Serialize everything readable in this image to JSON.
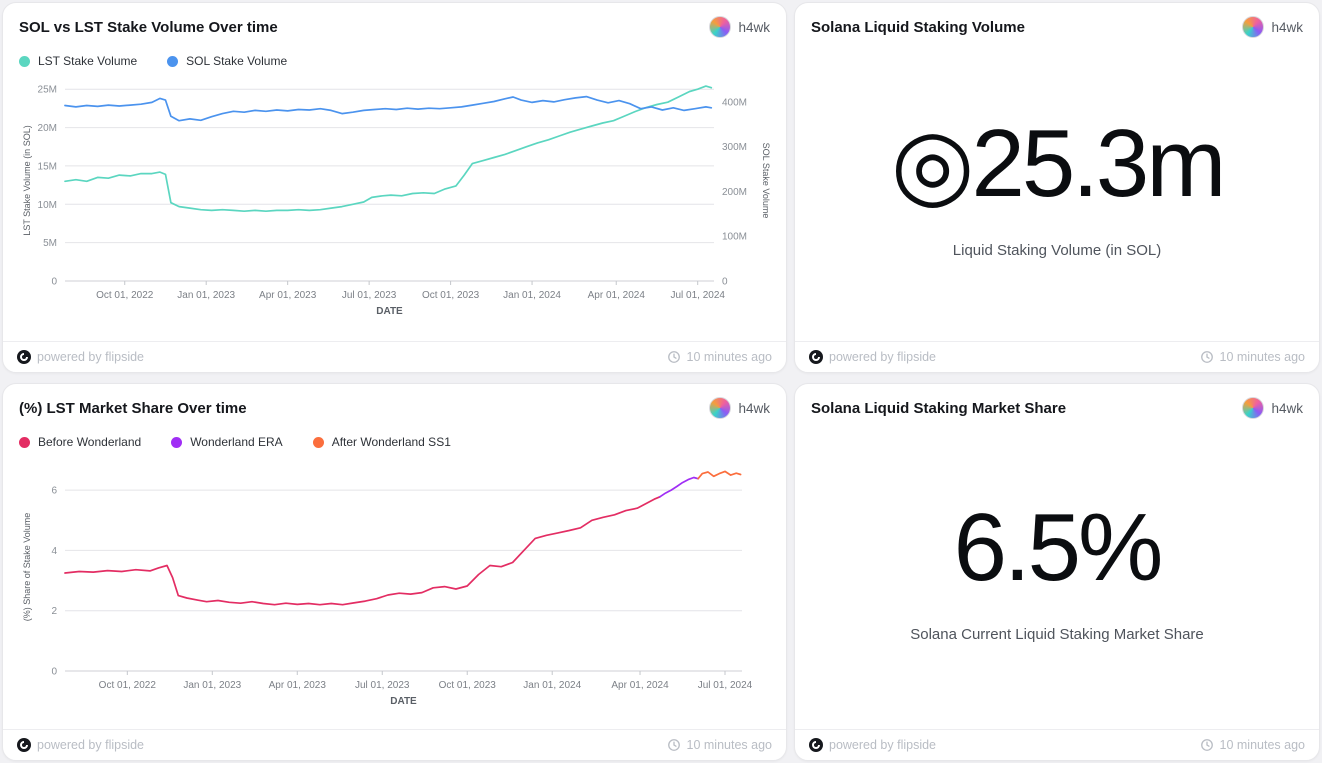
{
  "user": {
    "name": "h4wk"
  },
  "footer": {
    "powered_by": "powered by flipside",
    "updated": "10 minutes ago"
  },
  "stat_cards": [
    {
      "title": "Solana Liquid Staking Volume",
      "value": "◎25.3m",
      "caption": "Liquid Staking Volume (in SOL)"
    },
    {
      "title": "Solana Liquid Staking Market Share",
      "value": "6.5%",
      "caption": "Solana Current Liquid Staking Market Share"
    }
  ],
  "chart_data": [
    {
      "type": "line",
      "title": "SOL vs LST Stake Volume Over time",
      "xlabel": "DATE",
      "x_unit": "months since late Jul 2022 (approx dates)",
      "x_domain": [
        0,
        23.9
      ],
      "grid": true,
      "legend_position": "top",
      "x_ticks": [
        {
          "v": 2.2,
          "label": "Oct 01, 2022"
        },
        {
          "v": 5.2,
          "label": "Jan 01, 2023"
        },
        {
          "v": 8.2,
          "label": "Apr 01, 2023"
        },
        {
          "v": 11.2,
          "label": "Jul 01, 2023"
        },
        {
          "v": 14.2,
          "label": "Oct 01, 2023"
        },
        {
          "v": 17.2,
          "label": "Jan 01, 2024"
        },
        {
          "v": 20.3,
          "label": "Apr 01, 2024"
        },
        {
          "v": 23.3,
          "label": "Jul 01, 2024"
        }
      ],
      "axes": {
        "left": {
          "label": "LST Stake Volume (in SOL)",
          "domain": [
            0,
            26.2
          ],
          "ticks": [
            {
              "v": 0,
              "label": "0"
            },
            {
              "v": 5,
              "label": "5M"
            },
            {
              "v": 10,
              "label": "10M"
            },
            {
              "v": 15,
              "label": "15M"
            },
            {
              "v": 20,
              "label": "20M"
            },
            {
              "v": 25,
              "label": "25M"
            }
          ]
        },
        "right": {
          "label": "SOL Stake Volume",
          "domain": [
            0,
            449
          ],
          "ticks": [
            {
              "v": 0,
              "label": "0"
            },
            {
              "v": 100,
              "label": "100M"
            },
            {
              "v": 200,
              "label": "200M"
            },
            {
              "v": 300,
              "label": "300M"
            },
            {
              "v": 400,
              "label": "400M"
            }
          ]
        }
      },
      "series": [
        {
          "name": "LST Stake Volume",
          "color": "#5bd6c0",
          "axis": "left",
          "unit": "M SOL",
          "points": [
            [
              0,
              13.0
            ],
            [
              0.4,
              13.2
            ],
            [
              0.8,
              13.0
            ],
            [
              1.2,
              13.5
            ],
            [
              1.6,
              13.4
            ],
            [
              2,
              13.8
            ],
            [
              2.4,
              13.7
            ],
            [
              2.8,
              14.0
            ],
            [
              3.2,
              14.0
            ],
            [
              3.5,
              14.2
            ],
            [
              3.7,
              13.9
            ],
            [
              3.9,
              10.2
            ],
            [
              4.2,
              9.7
            ],
            [
              4.6,
              9.5
            ],
            [
              5,
              9.3
            ],
            [
              5.4,
              9.2
            ],
            [
              5.8,
              9.3
            ],
            [
              6.2,
              9.2
            ],
            [
              6.6,
              9.1
            ],
            [
              7,
              9.2
            ],
            [
              7.4,
              9.1
            ],
            [
              7.8,
              9.2
            ],
            [
              8.2,
              9.2
            ],
            [
              8.6,
              9.3
            ],
            [
              9,
              9.2
            ],
            [
              9.4,
              9.3
            ],
            [
              9.8,
              9.5
            ],
            [
              10.2,
              9.7
            ],
            [
              10.6,
              10.0
            ],
            [
              11,
              10.3
            ],
            [
              11.3,
              10.9
            ],
            [
              11.7,
              11.1
            ],
            [
              12,
              11.2
            ],
            [
              12.4,
              11.1
            ],
            [
              12.8,
              11.4
            ],
            [
              13.2,
              11.5
            ],
            [
              13.6,
              11.4
            ],
            [
              14,
              12.0
            ],
            [
              14.4,
              12.4
            ],
            [
              14.7,
              13.8
            ],
            [
              15,
              15.3
            ],
            [
              15.4,
              15.7
            ],
            [
              15.8,
              16.1
            ],
            [
              16.2,
              16.5
            ],
            [
              16.6,
              17.0
            ],
            [
              17,
              17.5
            ],
            [
              17.4,
              18.0
            ],
            [
              17.8,
              18.4
            ],
            [
              18.2,
              18.9
            ],
            [
              18.6,
              19.4
            ],
            [
              19,
              19.8
            ],
            [
              19.4,
              20.2
            ],
            [
              19.8,
              20.6
            ],
            [
              20.2,
              20.9
            ],
            [
              20.6,
              21.5
            ],
            [
              21,
              22.1
            ],
            [
              21.4,
              22.6
            ],
            [
              21.8,
              23.0
            ],
            [
              22.2,
              23.3
            ],
            [
              22.6,
              24.0
            ],
            [
              23,
              24.7
            ],
            [
              23.3,
              25.0
            ],
            [
              23.6,
              25.4
            ],
            [
              23.8,
              25.2
            ]
          ]
        },
        {
          "name": "SOL Stake Volume",
          "color": "#4b93ee",
          "axis": "right",
          "unit": "M SOL",
          "points": [
            [
              0,
              392
            ],
            [
              0.4,
              389
            ],
            [
              0.8,
              392
            ],
            [
              1.2,
              390
            ],
            [
              1.6,
              393
            ],
            [
              2,
              391
            ],
            [
              2.4,
              393
            ],
            [
              2.8,
              395
            ],
            [
              3.2,
              399
            ],
            [
              3.5,
              408
            ],
            [
              3.7,
              404
            ],
            [
              3.9,
              368
            ],
            [
              4.2,
              358
            ],
            [
              4.6,
              362
            ],
            [
              5,
              359
            ],
            [
              5.4,
              367
            ],
            [
              5.8,
              374
            ],
            [
              6.2,
              379
            ],
            [
              6.6,
              377
            ],
            [
              7,
              381
            ],
            [
              7.4,
              379
            ],
            [
              7.8,
              382
            ],
            [
              8.2,
              380
            ],
            [
              8.6,
              383
            ],
            [
              9,
              382
            ],
            [
              9.4,
              385
            ],
            [
              9.8,
              381
            ],
            [
              10.2,
              374
            ],
            [
              10.6,
              377
            ],
            [
              11,
              381
            ],
            [
              11.4,
              383
            ],
            [
              11.8,
              385
            ],
            [
              12.2,
              383
            ],
            [
              12.6,
              386
            ],
            [
              13,
              384
            ],
            [
              13.4,
              386
            ],
            [
              13.8,
              385
            ],
            [
              14.2,
              387
            ],
            [
              14.6,
              389
            ],
            [
              15,
              393
            ],
            [
              15.4,
              397
            ],
            [
              15.8,
              401
            ],
            [
              16.2,
              407
            ],
            [
              16.5,
              411
            ],
            [
              16.8,
              404
            ],
            [
              17.2,
              399
            ],
            [
              17.6,
              403
            ],
            [
              18,
              400
            ],
            [
              18.4,
              405
            ],
            [
              18.8,
              409
            ],
            [
              19.2,
              412
            ],
            [
              19.6,
              404
            ],
            [
              20,
              398
            ],
            [
              20.4,
              403
            ],
            [
              20.8,
              396
            ],
            [
              21.2,
              385
            ],
            [
              21.6,
              389
            ],
            [
              22,
              382
            ],
            [
              22.4,
              387
            ],
            [
              22.8,
              381
            ],
            [
              23.2,
              385
            ],
            [
              23.6,
              389
            ],
            [
              23.8,
              387
            ]
          ]
        }
      ]
    },
    {
      "type": "line",
      "title": "(%) LST Market Share Over time",
      "xlabel": "DATE",
      "x_unit": "months since late Jul 2022 (approx dates)",
      "x_domain": [
        0,
        23.9
      ],
      "grid": true,
      "legend_position": "top",
      "x_ticks": [
        {
          "v": 2.2,
          "label": "Oct 01, 2022"
        },
        {
          "v": 5.2,
          "label": "Jan 01, 2023"
        },
        {
          "v": 8.2,
          "label": "Apr 01, 2023"
        },
        {
          "v": 11.2,
          "label": "Jul 01, 2023"
        },
        {
          "v": 14.2,
          "label": "Oct 01, 2023"
        },
        {
          "v": 17.2,
          "label": "Jan 01, 2024"
        },
        {
          "v": 20.3,
          "label": "Apr 01, 2024"
        },
        {
          "v": 23.3,
          "label": "Jul 01, 2024"
        }
      ],
      "axes": {
        "left": {
          "label": "(%) Share of Stake Volume",
          "domain": [
            0,
            6.9
          ],
          "ticks": [
            {
              "v": 0,
              "label": "0"
            },
            {
              "v": 2,
              "label": "2"
            },
            {
              "v": 4,
              "label": "4"
            },
            {
              "v": 6,
              "label": "6"
            }
          ]
        }
      },
      "series": [
        {
          "name": "Before Wonderland",
          "color": "#e32d63",
          "axis": "left",
          "unit": "%",
          "points": [
            [
              0,
              3.25
            ],
            [
              0.5,
              3.3
            ],
            [
              1,
              3.28
            ],
            [
              1.5,
              3.33
            ],
            [
              2,
              3.3
            ],
            [
              2.5,
              3.36
            ],
            [
              3,
              3.32
            ],
            [
              3.3,
              3.42
            ],
            [
              3.6,
              3.5
            ],
            [
              3.8,
              3.1
            ],
            [
              4,
              2.5
            ],
            [
              4.3,
              2.42
            ],
            [
              4.7,
              2.35
            ],
            [
              5,
              2.3
            ],
            [
              5.4,
              2.34
            ],
            [
              5.8,
              2.28
            ],
            [
              6.2,
              2.25
            ],
            [
              6.6,
              2.3
            ],
            [
              7,
              2.24
            ],
            [
              7.4,
              2.2
            ],
            [
              7.8,
              2.25
            ],
            [
              8.2,
              2.21
            ],
            [
              8.6,
              2.24
            ],
            [
              9,
              2.2
            ],
            [
              9.4,
              2.24
            ],
            [
              9.8,
              2.2
            ],
            [
              10.2,
              2.26
            ],
            [
              10.6,
              2.32
            ],
            [
              11,
              2.4
            ],
            [
              11.4,
              2.52
            ],
            [
              11.8,
              2.58
            ],
            [
              12.2,
              2.55
            ],
            [
              12.6,
              2.6
            ],
            [
              13,
              2.76
            ],
            [
              13.4,
              2.8
            ],
            [
              13.8,
              2.72
            ],
            [
              14.2,
              2.82
            ],
            [
              14.6,
              3.2
            ],
            [
              15,
              3.5
            ],
            [
              15.4,
              3.46
            ],
            [
              15.8,
              3.6
            ],
            [
              16.2,
              4.0
            ],
            [
              16.6,
              4.4
            ],
            [
              17,
              4.5
            ],
            [
              17.4,
              4.58
            ],
            [
              17.8,
              4.66
            ],
            [
              18.2,
              4.75
            ],
            [
              18.6,
              5.0
            ],
            [
              19,
              5.1
            ],
            [
              19.4,
              5.18
            ],
            [
              19.8,
              5.32
            ],
            [
              20.2,
              5.4
            ],
            [
              20.5,
              5.55
            ],
            [
              20.8,
              5.7
            ],
            [
              21,
              5.78
            ]
          ]
        },
        {
          "name": "Wonderland ERA",
          "color": "#a02ef5",
          "axis": "left",
          "unit": "%",
          "points": [
            [
              21,
              5.78
            ],
            [
              21.2,
              5.9
            ],
            [
              21.4,
              6.0
            ],
            [
              21.6,
              6.12
            ],
            [
              21.8,
              6.25
            ],
            [
              22,
              6.35
            ],
            [
              22.2,
              6.42
            ],
            [
              22.35,
              6.38
            ]
          ]
        },
        {
          "name": "After Wonderland SS1",
          "color": "#fb6e3d",
          "axis": "left",
          "unit": "%",
          "points": [
            [
              22.35,
              6.38
            ],
            [
              22.5,
              6.55
            ],
            [
              22.7,
              6.6
            ],
            [
              22.9,
              6.46
            ],
            [
              23.1,
              6.55
            ],
            [
              23.3,
              6.62
            ],
            [
              23.5,
              6.5
            ],
            [
              23.7,
              6.56
            ],
            [
              23.85,
              6.52
            ]
          ]
        }
      ]
    }
  ],
  "icons": {
    "flipside_logo": "flipside-logo",
    "clock": "last-updated-clock"
  }
}
